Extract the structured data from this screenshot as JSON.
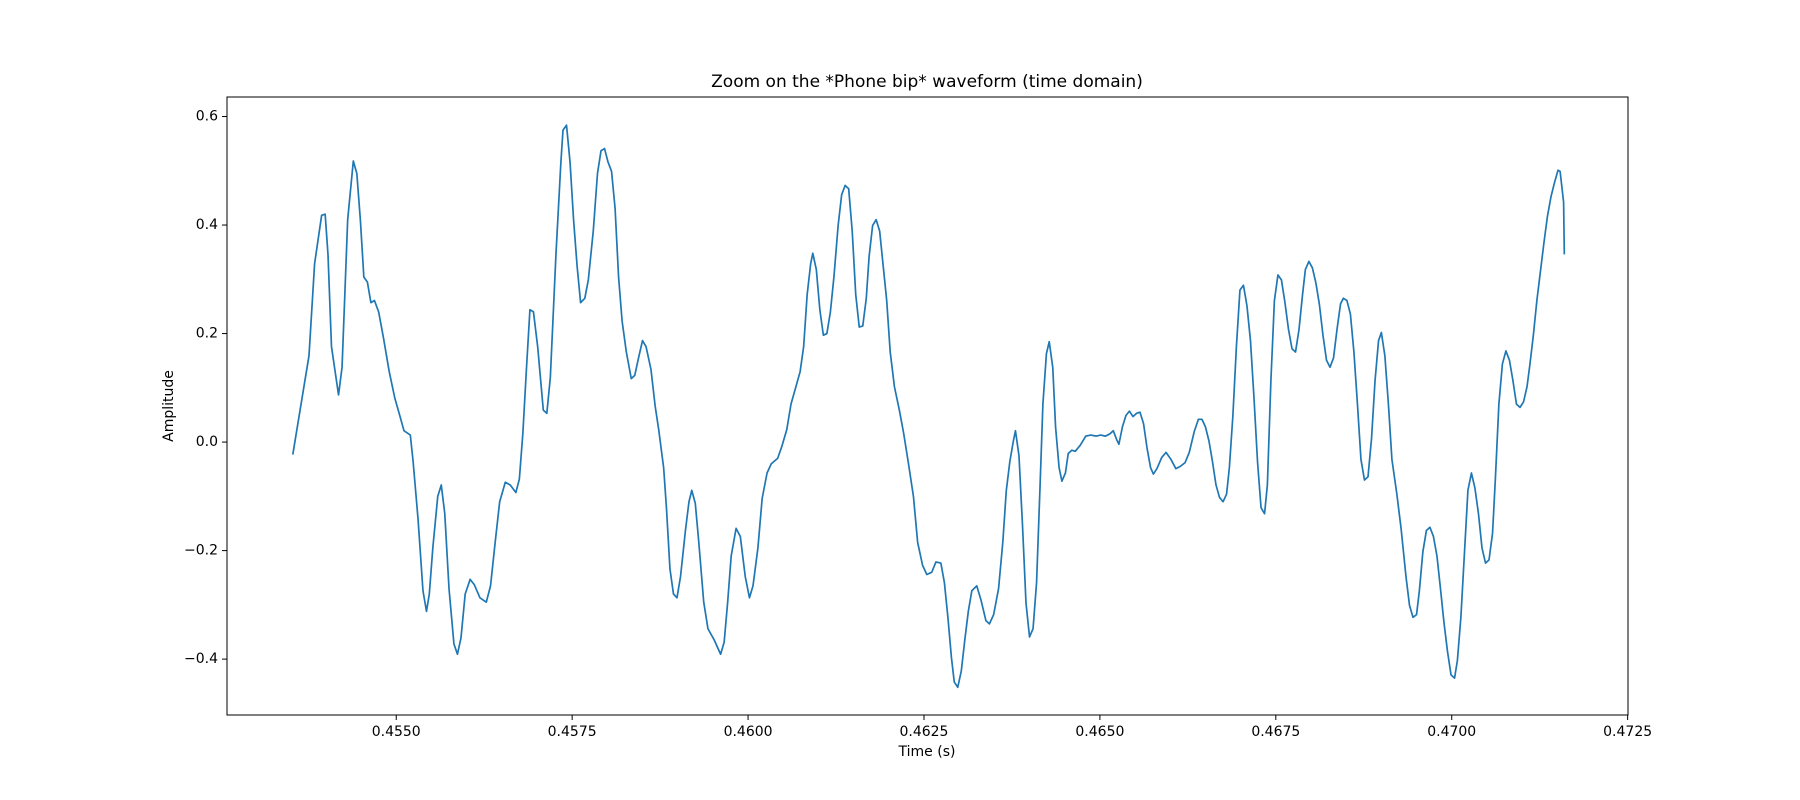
{
  "chart_data": {
    "type": "line",
    "title": "Zoom on the *Phone bip* waveform (time domain)",
    "x_label": "Time (s)",
    "y_label": "Amplitude",
    "color": "#1f77b4",
    "grid": false,
    "xlim": [
      0.452595,
      0.472505
    ],
    "ylim": [
      -0.503,
      0.636
    ],
    "xticks": [
      {
        "value": 0.455,
        "label": "0.4550"
      },
      0.4575,
      {
        "value": 0.46,
        "label": "0.4600"
      },
      0.4625,
      {
        "value": 0.465,
        "label": "0.4650"
      },
      0.4675,
      {
        "value": 0.47,
        "label": "0.4700"
      },
      0.4725
    ],
    "yticks": [
      {
        "value": -0.4,
        "label": "−0.4"
      },
      {
        "value": -0.2,
        "label": "−0.2"
      },
      {
        "value": 0,
        "label": "0.0"
      },
      0.2,
      0.4,
      0.6
    ],
    "x": [
      0.45353,
      0.45376,
      0.45384,
      0.45394,
      0.45399,
      0.45403,
      0.45408,
      0.45418,
      0.45423,
      0.45431,
      0.45439,
      0.45444,
      0.45449,
      0.45454,
      0.45459,
      0.45464,
      0.45469,
      0.45475,
      0.45482,
      0.4549,
      0.45498,
      0.45505,
      0.45511,
      0.4552,
      0.45524,
      0.45531,
      0.45538,
      0.45543,
      0.45547,
      0.45552,
      0.45559,
      0.45564,
      0.45569,
      0.45575,
      0.45582,
      0.45587,
      0.45592,
      0.45598,
      0.45605,
      0.45611,
      0.45619,
      0.45628,
      0.45634,
      0.45641,
      0.45647,
      0.45655,
      0.45662,
      0.4567,
      0.45675,
      0.4568,
      0.45685,
      0.4569,
      0.45695,
      0.45701,
      0.45709,
      0.45714,
      0.45719,
      0.45727,
      0.45734,
      0.45737,
      0.45742,
      0.45747,
      0.45752,
      0.45757,
      0.45762,
      0.45768,
      0.45773,
      0.4578,
      0.45786,
      0.45791,
      0.45796,
      0.45801,
      0.45806,
      0.45811,
      0.45816,
      0.45821,
      0.45827,
      0.45834,
      0.45839,
      0.45845,
      0.4585,
      0.45855,
      0.45862,
      0.45868,
      0.45873,
      0.4588,
      0.45884,
      0.45889,
      0.45894,
      0.45899,
      0.45904,
      0.45911,
      0.45916,
      0.4592,
      0.45925,
      0.4593,
      0.45937,
      0.45943,
      0.45952,
      0.45961,
      0.45966,
      0.45971,
      0.45976,
      0.45983,
      0.45989,
      0.45996,
      0.46002,
      0.46007,
      0.46014,
      0.4602,
      0.46027,
      0.46033,
      0.46042,
      0.46048,
      0.46055,
      0.46061,
      0.46068,
      0.46074,
      0.46079,
      0.46084,
      0.46089,
      0.46092,
      0.46097,
      0.46102,
      0.46107,
      0.46112,
      0.46117,
      0.46122,
      0.46128,
      0.46133,
      0.46138,
      0.46143,
      0.46148,
      0.46153,
      0.46158,
      0.46163,
      0.46168,
      0.46172,
      0.46177,
      0.46182,
      0.46187,
      0.46192,
      0.46197,
      0.46202,
      0.46208,
      0.46215,
      0.46221,
      0.46228,
      0.46235,
      0.46241,
      0.46248,
      0.46254,
      0.46261,
      0.46267,
      0.46274,
      0.46279,
      0.46284,
      0.46289,
      0.46293,
      0.46298,
      0.46303,
      0.46308,
      0.46313,
      0.46318,
      0.46325,
      0.46331,
      0.46338,
      0.46343,
      0.46349,
      0.46356,
      0.46362,
      0.46367,
      0.46372,
      0.46377,
      0.4638,
      0.46385,
      0.4639,
      0.46395,
      0.464,
      0.46405,
      0.4641,
      0.46415,
      0.46419,
      0.46424,
      0.46428,
      0.46433,
      0.46437,
      0.46442,
      0.46446,
      0.46451,
      0.46455,
      0.4646,
      0.46465,
      0.46472,
      0.4648,
      0.46487,
      0.46495,
      0.46501,
      0.46508,
      0.46514,
      0.46519,
      0.46524,
      0.46527,
      0.46532,
      0.46537,
      0.46542,
      0.46547,
      0.46552,
      0.46557,
      0.46562,
      0.46567,
      0.46572,
      0.46576,
      0.46581,
      0.46588,
      0.46594,
      0.46601,
      0.46608,
      0.46614,
      0.46621,
      0.46627,
      0.46634,
      0.4664,
      0.46645,
      0.4665,
      0.46655,
      0.4666,
      0.46665,
      0.4667,
      0.46675,
      0.4668,
      0.46684,
      0.46689,
      0.46694,
      0.46699,
      0.46704,
      0.46709,
      0.46714,
      0.46719,
      0.46724,
      0.46729,
      0.46734,
      0.46738,
      0.46743,
      0.46748,
      0.46753,
      0.46758,
      0.46763,
      0.46768,
      0.46773,
      0.46778,
      0.46783,
      0.46788,
      0.46792,
      0.46797,
      0.46802,
      0.46807,
      0.46812,
      0.46817,
      0.46822,
      0.46827,
      0.46832,
      0.46837,
      0.46842,
      0.46846,
      0.46851,
      0.46856,
      0.46861,
      0.46866,
      0.46871,
      0.46876,
      0.46881,
      0.46886,
      0.46891,
      0.46896,
      0.469,
      0.46905,
      0.4691,
      0.46915,
      0.46922,
      0.46928,
      0.46935,
      0.4694,
      0.46945,
      0.4695,
      0.46954,
      0.46959,
      0.46964,
      0.46969,
      0.46974,
      0.46979,
      0.46984,
      0.46989,
      0.46994,
      0.46999,
      0.47004,
      0.47008,
      0.47013,
      0.47018,
      0.47023,
      0.47028,
      0.47033,
      0.47038,
      0.47043,
      0.47048,
      0.47053,
      0.47058,
      0.47062,
      0.47067,
      0.47072,
      0.47077,
      0.47082,
      0.47087,
      0.47092,
      0.47097,
      0.47102,
      0.47107,
      0.47111,
      0.47116,
      0.47121,
      0.47126,
      0.47131,
      0.47136,
      0.47141,
      0.47146,
      0.47151,
      0.47154,
      0.47159,
      0.4716
    ],
    "values": [
      -0.023,
      0.159,
      0.329,
      0.418,
      0.42,
      0.346,
      0.176,
      0.087,
      0.138,
      0.41,
      0.518,
      0.495,
      0.41,
      0.304,
      0.295,
      0.257,
      0.261,
      0.24,
      0.191,
      0.13,
      0.081,
      0.049,
      0.021,
      0.013,
      -0.036,
      -0.142,
      -0.274,
      -0.312,
      -0.28,
      -0.195,
      -0.1,
      -0.079,
      -0.132,
      -0.27,
      -0.372,
      -0.391,
      -0.361,
      -0.28,
      -0.253,
      -0.263,
      -0.287,
      -0.295,
      -0.265,
      -0.18,
      -0.11,
      -0.074,
      -0.079,
      -0.093,
      -0.068,
      0.017,
      0.134,
      0.244,
      0.24,
      0.176,
      0.059,
      0.053,
      0.119,
      0.346,
      0.516,
      0.575,
      0.584,
      0.516,
      0.41,
      0.325,
      0.257,
      0.265,
      0.299,
      0.389,
      0.495,
      0.537,
      0.541,
      0.516,
      0.499,
      0.431,
      0.304,
      0.223,
      0.166,
      0.117,
      0.123,
      0.159,
      0.187,
      0.176,
      0.134,
      0.066,
      0.023,
      -0.047,
      -0.121,
      -0.234,
      -0.28,
      -0.287,
      -0.248,
      -0.163,
      -0.11,
      -0.089,
      -0.113,
      -0.185,
      -0.295,
      -0.344,
      -0.365,
      -0.391,
      -0.369,
      -0.295,
      -0.21,
      -0.159,
      -0.174,
      -0.248,
      -0.287,
      -0.265,
      -0.195,
      -0.104,
      -0.057,
      -0.04,
      -0.03,
      -0.008,
      0.023,
      0.07,
      0.102,
      0.13,
      0.176,
      0.272,
      0.329,
      0.348,
      0.318,
      0.244,
      0.197,
      0.2,
      0.24,
      0.304,
      0.399,
      0.456,
      0.473,
      0.467,
      0.389,
      0.272,
      0.212,
      0.214,
      0.265,
      0.342,
      0.399,
      0.41,
      0.389,
      0.325,
      0.261,
      0.166,
      0.102,
      0.059,
      0.017,
      -0.04,
      -0.1,
      -0.185,
      -0.227,
      -0.244,
      -0.24,
      -0.221,
      -0.223,
      -0.259,
      -0.323,
      -0.397,
      -0.442,
      -0.452,
      -0.422,
      -0.365,
      -0.312,
      -0.274,
      -0.265,
      -0.291,
      -0.329,
      -0.335,
      -0.318,
      -0.27,
      -0.185,
      -0.089,
      -0.036,
      0.002,
      0.021,
      -0.025,
      -0.153,
      -0.297,
      -0.359,
      -0.344,
      -0.259,
      -0.079,
      0.07,
      0.163,
      0.185,
      0.138,
      0.028,
      -0.047,
      -0.072,
      -0.057,
      -0.021,
      -0.015,
      -0.017,
      -0.006,
      0.011,
      0.013,
      0.011,
      0.013,
      0.011,
      0.015,
      0.021,
      0.004,
      -0.004,
      0.028,
      0.049,
      0.057,
      0.047,
      0.053,
      0.055,
      0.034,
      -0.011,
      -0.047,
      -0.059,
      -0.049,
      -0.028,
      -0.019,
      -0.032,
      -0.049,
      -0.045,
      -0.038,
      -0.019,
      0.019,
      0.042,
      0.042,
      0.028,
      0.002,
      -0.036,
      -0.079,
      -0.102,
      -0.11,
      -0.096,
      -0.047,
      0.049,
      0.176,
      0.28,
      0.289,
      0.251,
      0.187,
      0.081,
      -0.036,
      -0.121,
      -0.132,
      -0.079,
      0.113,
      0.261,
      0.308,
      0.299,
      0.257,
      0.208,
      0.172,
      0.166,
      0.208,
      0.272,
      0.318,
      0.333,
      0.321,
      0.293,
      0.253,
      0.197,
      0.151,
      0.138,
      0.155,
      0.208,
      0.255,
      0.265,
      0.261,
      0.236,
      0.166,
      0.07,
      -0.032,
      -0.07,
      -0.064,
      0.006,
      0.113,
      0.187,
      0.202,
      0.159,
      0.07,
      -0.032,
      -0.096,
      -0.159,
      -0.248,
      -0.301,
      -0.323,
      -0.318,
      -0.274,
      -0.202,
      -0.163,
      -0.157,
      -0.174,
      -0.21,
      -0.27,
      -0.333,
      -0.386,
      -0.429,
      -0.435,
      -0.403,
      -0.323,
      -0.206,
      -0.089,
      -0.057,
      -0.085,
      -0.132,
      -0.195,
      -0.223,
      -0.217,
      -0.168,
      -0.068,
      0.07,
      0.144,
      0.168,
      0.151,
      0.113,
      0.07,
      0.064,
      0.074,
      0.102,
      0.142,
      0.197,
      0.261,
      0.314,
      0.367,
      0.416,
      0.452,
      0.478,
      0.501,
      0.499,
      0.442,
      0.346
    ]
  }
}
